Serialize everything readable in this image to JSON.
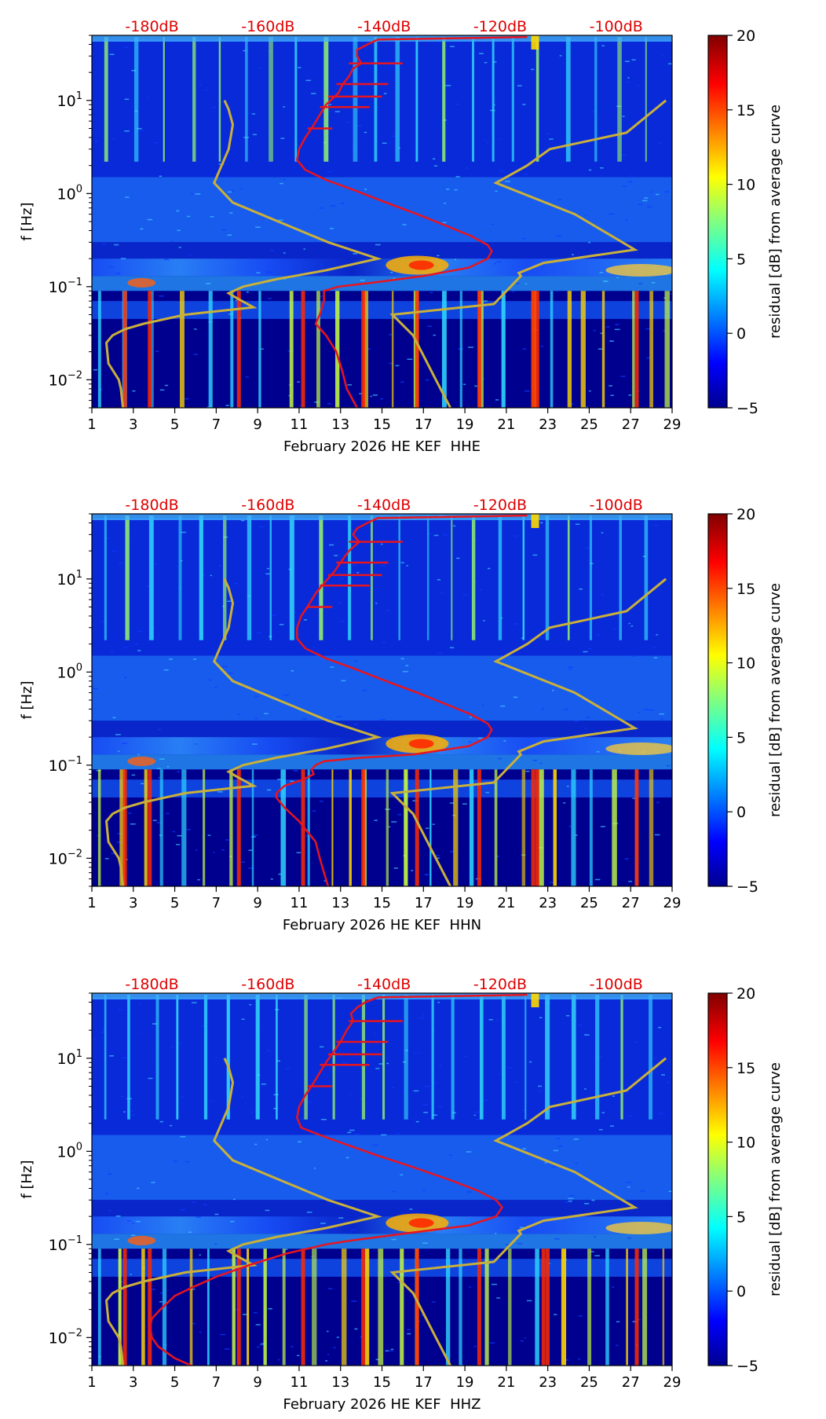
{
  "figure": {
    "colorbar": {
      "label": "residual [dB] from average curve",
      "range": [
        -5,
        20
      ],
      "ticks": [
        -5,
        0,
        5,
        10,
        15,
        20
      ],
      "tick_labels": [
        "−5",
        "0",
        "5",
        "10",
        "15",
        "20"
      ]
    },
    "colors": {
      "noise_model": "#c9b03a",
      "median_curve": "#e8141e",
      "db_labels": "#e00000",
      "background": "#00008f"
    }
  },
  "chart_data": [
    {
      "type": "heatmap",
      "panel": "HHE",
      "xlabel": "February 2026 HE KEF  HHE",
      "ylabel": "f [Hz]",
      "x_range": [
        1,
        29
      ],
      "x_ticks": [
        "1",
        "3",
        "5",
        "7",
        "9",
        "11",
        "13",
        "15",
        "17",
        "19",
        "21",
        "23",
        "25",
        "27",
        "29"
      ],
      "y_range_hz": [
        0.005,
        50
      ],
      "y_ticks": [
        {
          "value": 0.01,
          "base": "10",
          "exp": "−2"
        },
        {
          "value": 0.1,
          "base": "10",
          "exp": "−1"
        },
        {
          "value": 1,
          "base": "10",
          "exp": "0"
        },
        {
          "value": 10,
          "base": "10",
          "exp": "1"
        }
      ],
      "top_labels": [
        "-180dB",
        "-160dB",
        "-140dB",
        "-120dB",
        "-100dB"
      ],
      "top_label_x": [
        3.9,
        9.5,
        15.1,
        20.7,
        26.3
      ],
      "db_axis": {
        "day_at_minus_180": 3.9,
        "days_per_20db": 5.6
      },
      "noise_models": {
        "low": [
          [
            10,
            7.4
          ],
          [
            8,
            7.6
          ],
          [
            5.5,
            7.8
          ],
          [
            3,
            7.6
          ],
          [
            1.3,
            6.9
          ],
          [
            0.8,
            7.8
          ],
          [
            0.5,
            10.0
          ],
          [
            0.3,
            12.4
          ],
          [
            0.2,
            14.8
          ],
          [
            0.15,
            12.3
          ],
          [
            0.12,
            9.9
          ],
          [
            0.1,
            8.3
          ],
          [
            0.085,
            7.6
          ],
          [
            0.075,
            8.0
          ],
          [
            0.06,
            8.8
          ],
          [
            0.05,
            5.5
          ],
          [
            0.04,
            3.5
          ],
          [
            0.035,
            2.6
          ],
          [
            0.03,
            2.0
          ],
          [
            0.025,
            1.7
          ],
          [
            0.015,
            1.8
          ],
          [
            0.01,
            2.3
          ],
          [
            0.008,
            2.4
          ],
          [
            0.005,
            2.5
          ]
        ],
        "high": [
          [
            10,
            28.7
          ],
          [
            4.5,
            26.8
          ],
          [
            3,
            23.1
          ],
          [
            2,
            22.0
          ],
          [
            1.3,
            20.5
          ],
          [
            0.6,
            24.3
          ],
          [
            0.25,
            27.2
          ],
          [
            0.18,
            22.8
          ],
          [
            0.14,
            21.6
          ],
          [
            0.13,
            21.7
          ],
          [
            0.065,
            20.4
          ],
          [
            0.05,
            15.5
          ],
          [
            0.03,
            16.5
          ],
          [
            0.01,
            17.6
          ],
          [
            0.005,
            18.3
          ]
        ]
      },
      "median_curve": [
        [
          48,
          22.0
        ],
        [
          45,
          14.8
        ],
        [
          40,
          14.3
        ],
        [
          35,
          13.8
        ],
        [
          30,
          13.8
        ],
        [
          25,
          14.0
        ],
        [
          22,
          13.6
        ],
        [
          18,
          13.4
        ],
        [
          15,
          13.1
        ],
        [
          12,
          12.9
        ],
        [
          9,
          12.3
        ],
        [
          7,
          12.0
        ],
        [
          5,
          11.6
        ],
        [
          4,
          11.3
        ],
        [
          3,
          11.0
        ],
        [
          2.3,
          10.9
        ],
        [
          1.8,
          11.3
        ],
        [
          1.4,
          12.3
        ],
        [
          1.1,
          13.6
        ],
        [
          0.8,
          15.2
        ],
        [
          0.6,
          16.7
        ],
        [
          0.45,
          18.1
        ],
        [
          0.35,
          19.3
        ],
        [
          0.28,
          20.1
        ],
        [
          0.24,
          20.3
        ],
        [
          0.2,
          20.1
        ],
        [
          0.16,
          19.2
        ],
        [
          0.13,
          17.0
        ],
        [
          0.11,
          14.5
        ],
        [
          0.1,
          12.9
        ],
        [
          0.09,
          12.2
        ],
        [
          0.07,
          12.2
        ],
        [
          0.05,
          12.0
        ],
        [
          0.04,
          11.8
        ],
        [
          0.03,
          12.3
        ],
        [
          0.02,
          12.8
        ],
        [
          0.012,
          13.1
        ],
        [
          0.008,
          13.3
        ],
        [
          0.006,
          13.6
        ],
        [
          0.005,
          13.8
        ]
      ],
      "hot_days": [
        2.5,
        3.7,
        8.0,
        11.1,
        14.0,
        16.6,
        19.6,
        22.2,
        22.4,
        27.2
      ]
    },
    {
      "type": "heatmap",
      "panel": "HHN",
      "xlabel": "February 2026 HE KEF  HHN",
      "ylabel": "f [Hz]",
      "x_range": [
        1,
        29
      ],
      "x_ticks": [
        "1",
        "3",
        "5",
        "7",
        "9",
        "11",
        "13",
        "15",
        "17",
        "19",
        "21",
        "23",
        "25",
        "27",
        "29"
      ],
      "y_range_hz": [
        0.005,
        50
      ],
      "y_ticks": [
        {
          "value": 0.01,
          "base": "10",
          "exp": "−2"
        },
        {
          "value": 0.1,
          "base": "10",
          "exp": "−1"
        },
        {
          "value": 1,
          "base": "10",
          "exp": "0"
        },
        {
          "value": 10,
          "base": "10",
          "exp": "1"
        }
      ],
      "top_labels": [
        "-180dB",
        "-160dB",
        "-140dB",
        "-120dB",
        "-100dB"
      ],
      "top_label_x": [
        3.9,
        9.5,
        15.1,
        20.7,
        26.3
      ],
      "db_axis": {
        "day_at_minus_180": 3.9,
        "days_per_20db": 5.6
      },
      "noise_models": {
        "low": [
          [
            10,
            7.4
          ],
          [
            8,
            7.6
          ],
          [
            5.5,
            7.8
          ],
          [
            3,
            7.6
          ],
          [
            1.3,
            6.9
          ],
          [
            0.8,
            7.8
          ],
          [
            0.5,
            10.0
          ],
          [
            0.3,
            12.4
          ],
          [
            0.2,
            14.8
          ],
          [
            0.15,
            12.3
          ],
          [
            0.12,
            9.9
          ],
          [
            0.1,
            8.3
          ],
          [
            0.085,
            7.6
          ],
          [
            0.075,
            8.0
          ],
          [
            0.06,
            8.8
          ],
          [
            0.05,
            5.5
          ],
          [
            0.04,
            3.5
          ],
          [
            0.035,
            2.6
          ],
          [
            0.03,
            2.0
          ],
          [
            0.025,
            1.7
          ],
          [
            0.015,
            1.8
          ],
          [
            0.01,
            2.3
          ],
          [
            0.008,
            2.4
          ],
          [
            0.005,
            2.5
          ]
        ],
        "high": [
          [
            10,
            28.7
          ],
          [
            4.5,
            26.8
          ],
          [
            3,
            23.1
          ],
          [
            2,
            22.0
          ],
          [
            1.3,
            20.5
          ],
          [
            0.6,
            24.3
          ],
          [
            0.25,
            27.2
          ],
          [
            0.18,
            22.8
          ],
          [
            0.14,
            21.6
          ],
          [
            0.13,
            21.7
          ],
          [
            0.065,
            20.4
          ],
          [
            0.05,
            15.5
          ],
          [
            0.03,
            16.5
          ],
          [
            0.01,
            17.6
          ],
          [
            0.005,
            18.3
          ]
        ]
      },
      "median_curve": [
        [
          48,
          22.0
        ],
        [
          45,
          14.8
        ],
        [
          40,
          14.3
        ],
        [
          35,
          13.8
        ],
        [
          30,
          13.6
        ],
        [
          25,
          13.9
        ],
        [
          20,
          13.4
        ],
        [
          15,
          13.0
        ],
        [
          12,
          12.7
        ],
        [
          9,
          12.2
        ],
        [
          7,
          11.8
        ],
        [
          5,
          11.4
        ],
        [
          4,
          11.1
        ],
        [
          3,
          10.9
        ],
        [
          2.3,
          10.9
        ],
        [
          1.8,
          11.3
        ],
        [
          1.4,
          12.3
        ],
        [
          1.1,
          13.6
        ],
        [
          0.8,
          15.2
        ],
        [
          0.6,
          16.7
        ],
        [
          0.45,
          18.1
        ],
        [
          0.35,
          19.3
        ],
        [
          0.28,
          20.1
        ],
        [
          0.24,
          20.3
        ],
        [
          0.2,
          20.1
        ],
        [
          0.16,
          19.2
        ],
        [
          0.13,
          16.5
        ],
        [
          0.12,
          14.0
        ],
        [
          0.11,
          12.2
        ],
        [
          0.1,
          11.8
        ],
        [
          0.09,
          11.6
        ],
        [
          0.08,
          11.7
        ],
        [
          0.07,
          11.2
        ],
        [
          0.06,
          10.3
        ],
        [
          0.05,
          9.9
        ],
        [
          0.045,
          9.9
        ],
        [
          0.035,
          10.3
        ],
        [
          0.025,
          11.0
        ],
        [
          0.015,
          11.8
        ],
        [
          0.01,
          12.0
        ],
        [
          0.007,
          12.2
        ],
        [
          0.005,
          12.4
        ]
      ],
      "hot_days": [
        2.5,
        3.7,
        8.0,
        11.1,
        14.0,
        16.6,
        19.6,
        22.2,
        22.4,
        27.2
      ]
    },
    {
      "type": "heatmap",
      "panel": "HHZ",
      "xlabel": "February 2026 HE KEF  HHZ",
      "ylabel": "f [Hz]",
      "x_range": [
        1,
        29
      ],
      "x_ticks": [
        "1",
        "3",
        "5",
        "7",
        "9",
        "11",
        "13",
        "15",
        "17",
        "19",
        "21",
        "23",
        "25",
        "27",
        "29"
      ],
      "y_range_hz": [
        0.005,
        50
      ],
      "y_ticks": [
        {
          "value": 0.01,
          "base": "10",
          "exp": "−2"
        },
        {
          "value": 0.1,
          "base": "10",
          "exp": "−1"
        },
        {
          "value": 1,
          "base": "10",
          "exp": "0"
        },
        {
          "value": 10,
          "base": "10",
          "exp": "1"
        }
      ],
      "top_labels": [
        "-180dB",
        "-160dB",
        "-140dB",
        "-120dB",
        "-100dB"
      ],
      "top_label_x": [
        3.9,
        9.5,
        15.1,
        20.7,
        26.3
      ],
      "db_axis": {
        "day_at_minus_180": 3.9,
        "days_per_20db": 5.6
      },
      "noise_models": {
        "low": [
          [
            10,
            7.4
          ],
          [
            8,
            7.6
          ],
          [
            5.5,
            7.8
          ],
          [
            3,
            7.6
          ],
          [
            1.3,
            6.9
          ],
          [
            0.8,
            7.8
          ],
          [
            0.5,
            10.0
          ],
          [
            0.3,
            12.4
          ],
          [
            0.2,
            14.8
          ],
          [
            0.15,
            12.3
          ],
          [
            0.12,
            9.9
          ],
          [
            0.1,
            8.3
          ],
          [
            0.085,
            7.6
          ],
          [
            0.075,
            8.0
          ],
          [
            0.06,
            8.8
          ],
          [
            0.05,
            5.5
          ],
          [
            0.04,
            3.5
          ],
          [
            0.035,
            2.6
          ],
          [
            0.03,
            2.0
          ],
          [
            0.025,
            1.7
          ],
          [
            0.015,
            1.8
          ],
          [
            0.01,
            2.3
          ],
          [
            0.008,
            2.4
          ],
          [
            0.005,
            2.5
          ]
        ],
        "high": [
          [
            10,
            28.7
          ],
          [
            4.5,
            26.8
          ],
          [
            3,
            23.1
          ],
          [
            2,
            22.0
          ],
          [
            1.3,
            20.5
          ],
          [
            0.6,
            24.3
          ],
          [
            0.25,
            27.2
          ],
          [
            0.18,
            22.8
          ],
          [
            0.14,
            21.6
          ],
          [
            0.13,
            21.7
          ],
          [
            0.065,
            20.4
          ],
          [
            0.05,
            15.5
          ],
          [
            0.03,
            16.5
          ],
          [
            0.01,
            17.6
          ],
          [
            0.005,
            18.3
          ]
        ]
      },
      "median_curve": [
        [
          48,
          22.0
        ],
        [
          45,
          14.8
        ],
        [
          40,
          14.2
        ],
        [
          35,
          13.8
        ],
        [
          30,
          13.5
        ],
        [
          25,
          13.6
        ],
        [
          20,
          13.3
        ],
        [
          15,
          13.0
        ],
        [
          12,
          12.7
        ],
        [
          9,
          12.3
        ],
        [
          7,
          12.0
        ],
        [
          5,
          11.6
        ],
        [
          4,
          11.3
        ],
        [
          3,
          11.0
        ],
        [
          2.3,
          10.9
        ],
        [
          1.8,
          11.1
        ],
        [
          1.5,
          12.0
        ],
        [
          1.2,
          13.2
        ],
        [
          0.9,
          14.8
        ],
        [
          0.7,
          16.3
        ],
        [
          0.5,
          18.2
        ],
        [
          0.38,
          19.6
        ],
        [
          0.3,
          20.5
        ],
        [
          0.25,
          20.8
        ],
        [
          0.2,
          20.5
        ],
        [
          0.16,
          19.2
        ],
        [
          0.13,
          16.0
        ],
        [
          0.11,
          13.5
        ],
        [
          0.1,
          12.3
        ],
        [
          0.09,
          11.4
        ],
        [
          0.08,
          10.4
        ],
        [
          0.06,
          8.6
        ],
        [
          0.045,
          7.0
        ],
        [
          0.035,
          5.9
        ],
        [
          0.028,
          5.0
        ],
        [
          0.02,
          4.3
        ],
        [
          0.016,
          3.9
        ],
        [
          0.013,
          3.8
        ],
        [
          0.01,
          3.9
        ],
        [
          0.008,
          4.2
        ],
        [
          0.006,
          5.0
        ],
        [
          0.005,
          5.8
        ]
      ],
      "hot_days": [
        2.5,
        3.7,
        8.0,
        11.1,
        14.0,
        16.6,
        19.6,
        22.7,
        22.9,
        27.2
      ]
    }
  ]
}
